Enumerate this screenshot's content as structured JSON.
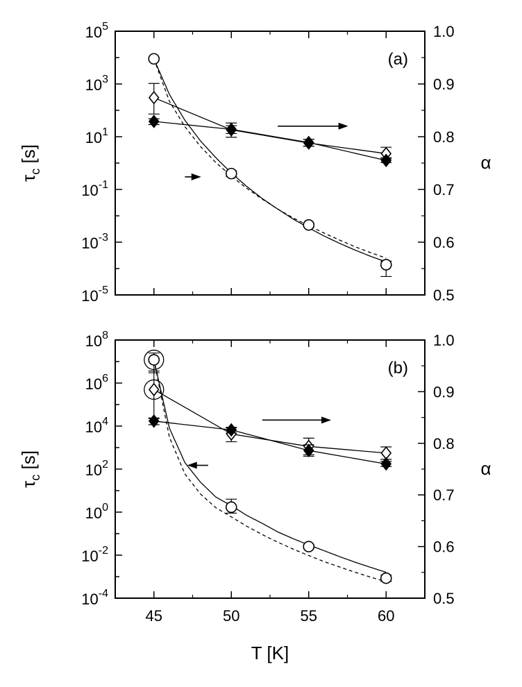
{
  "chart_data": [
    {
      "type": "scatter",
      "panel_label": "(a)",
      "xlabel": "",
      "ylabel": "τc [s]",
      "ylabel_main": "τ",
      "ylabel_sub": "c",
      "ylabel_unit": "[s]",
      "y2label": "α",
      "xlim": [
        42.5,
        62.5
      ],
      "ylim_log10": [
        -5,
        5
      ],
      "y_scale": "log",
      "y_ticks": [
        -5,
        -3,
        -1,
        1,
        3,
        5
      ],
      "y_tick_labels": [
        {
          "base": "10",
          "exp": "-5"
        },
        {
          "base": "10",
          "exp": "-3"
        },
        {
          "base": "10",
          "exp": "-1"
        },
        {
          "base": "10",
          "exp": "1"
        },
        {
          "base": "10",
          "exp": "3"
        },
        {
          "base": "10",
          "exp": "5"
        }
      ],
      "y2lim": [
        0.5,
        1.0
      ],
      "y2_ticks": [
        "0.5",
        "0.6",
        "0.7",
        "0.8",
        "0.9",
        "1.0"
      ],
      "x_ticks": [
        45,
        50,
        55,
        60
      ],
      "x_tick_labels_shown": false,
      "series": [
        {
          "axis": "left",
          "marker": "open-circle",
          "x": [
            45,
            50,
            55,
            60
          ],
          "y": [
            9000,
            0.4,
            0.0045,
            0.00014
          ],
          "err_low": [
            null,
            0.31,
            0.0039,
            5e-05
          ],
          "err_high": [
            null,
            0.51,
            0.0052,
            0.00019
          ]
        },
        {
          "axis": "right",
          "marker": "open-diamond",
          "x": [
            45,
            50,
            55,
            60
          ],
          "y": [
            0.874,
            0.813,
            0.788,
            0.768
          ],
          "err_low": [
            0.843,
            0.799,
            0.782,
            0.758
          ],
          "err_high": [
            0.901,
            0.826,
            0.795,
            0.78
          ]
        },
        {
          "axis": "right",
          "marker": "filled-diamond",
          "x": [
            45,
            50,
            55,
            60
          ],
          "y": [
            0.829,
            0.814,
            0.789,
            0.755
          ],
          "err_low": [
            0.823,
            0.806,
            0.782,
            0.751
          ],
          "err_high": [
            0.834,
            0.821,
            0.795,
            0.76
          ]
        }
      ],
      "fits": [
        {
          "axis": "left",
          "style": "solid",
          "x": [
            45,
            46,
            47,
            48,
            49,
            50,
            51,
            52,
            53,
            54,
            55,
            56,
            57,
            58,
            59,
            60
          ],
          "y": [
            9000,
            400,
            42,
            7,
            1.6,
            0.42,
            0.13,
            0.045,
            0.018,
            0.0075,
            0.0035,
            0.0017,
            0.0009,
            0.0005,
            0.00029,
            0.00018
          ]
        },
        {
          "axis": "left",
          "style": "dashed",
          "x": [
            45,
            46,
            47,
            48,
            49,
            50,
            51,
            52,
            53,
            54,
            55,
            56,
            57,
            58,
            59,
            60
          ],
          "y": [
            9000,
            220,
            24,
            4.3,
            1.05,
            0.32,
            0.11,
            0.043,
            0.018,
            0.0083,
            0.0042,
            0.0022,
            0.0012,
            0.00067,
            0.0004,
            0.00025
          ]
        },
        {
          "axis": "right",
          "style": "solid",
          "x": [
            45,
            50,
            55,
            60
          ],
          "y": [
            0.874,
            0.813,
            0.788,
            0.768
          ]
        },
        {
          "axis": "right",
          "style": "solid",
          "x": [
            45,
            50,
            55,
            60
          ],
          "y": [
            0.829,
            0.814,
            0.789,
            0.755
          ]
        }
      ],
      "arrows": [
        {
          "direction": "left",
          "x_from": 47,
          "x_to": 44.8,
          "axis": "left",
          "y": 0.3
        },
        {
          "direction": "right",
          "x_from": 53,
          "x_to": 57.1,
          "axis": "right",
          "y": 0.82
        }
      ]
    },
    {
      "type": "scatter",
      "panel_label": "(b)",
      "xlabel": "T [K]",
      "ylabel": "τc [s]",
      "ylabel_main": "τ",
      "ylabel_sub": "c",
      "ylabel_unit": "[s]",
      "y2label": "α",
      "xlim": [
        42.5,
        62.5
      ],
      "ylim_log10": [
        -4,
        8
      ],
      "y_scale": "log",
      "y_ticks": [
        -4,
        -2,
        0,
        2,
        4,
        6,
        8
      ],
      "y_tick_labels": [
        {
          "base": "10",
          "exp": "-4"
        },
        {
          "base": "10",
          "exp": "-2"
        },
        {
          "base": "10",
          "exp": "0"
        },
        {
          "base": "10",
          "exp": "2"
        },
        {
          "base": "10",
          "exp": "4"
        },
        {
          "base": "10",
          "exp": "6"
        },
        {
          "base": "10",
          "exp": "8"
        }
      ],
      "y2lim": [
        0.5,
        1.0
      ],
      "y2_ticks": [
        "0.5",
        "0.6",
        "0.7",
        "0.8",
        "0.9",
        "1.0"
      ],
      "x_ticks": [
        45,
        50,
        55,
        60
      ],
      "x_tick_labels": [
        "45",
        "50",
        "55",
        "60"
      ],
      "series": [
        {
          "axis": "left",
          "marker": "open-circle",
          "x": [
            45,
            50,
            55,
            60
          ],
          "y": [
            12000000.0,
            1.7,
            0.025,
            0.00085
          ],
          "err_low": [
            3000000.0,
            0.9,
            0.02,
            0.0006
          ],
          "err_high": [
            25000000.0,
            4.0,
            0.031,
            0.0012
          ],
          "highlight": [
            true,
            false,
            false,
            false
          ]
        },
        {
          "axis": "right",
          "marker": "open-diamond",
          "x": [
            45,
            50,
            55,
            60
          ],
          "y": [
            0.904,
            0.818,
            0.794,
            0.781
          ],
          "err_low": [
            0.848,
            0.803,
            0.778,
            0.769
          ],
          "err_high": [
            0.94,
            0.83,
            0.81,
            0.793
          ],
          "highlight": [
            true,
            false,
            false,
            false
          ]
        },
        {
          "axis": "right",
          "marker": "filled-diamond",
          "x": [
            45,
            50,
            55,
            60
          ],
          "y": [
            0.843,
            0.826,
            0.786,
            0.76
          ],
          "err_low": [
            0.836,
            0.82,
            0.775,
            0.755
          ],
          "err_high": [
            0.849,
            0.831,
            0.797,
            0.765
          ]
        }
      ],
      "fits": [
        {
          "axis": "left",
          "style": "solid",
          "x": [
            45,
            46,
            47,
            48,
            49,
            50,
            51,
            52,
            53,
            54,
            55,
            56,
            57,
            58,
            59,
            60
          ],
          "y": [
            12000000.0,
            8000,
            200,
            25,
            5,
            2,
            0.7,
            0.3,
            0.12,
            0.058,
            0.03,
            0.016,
            0.0085,
            0.0047,
            0.0027,
            0.0016
          ]
        },
        {
          "axis": "left",
          "style": "dashed",
          "x": [
            45,
            46,
            47,
            48,
            49,
            50,
            51,
            52,
            53,
            54,
            55,
            56,
            57,
            58,
            59,
            60
          ],
          "y": [
            12000000.0,
            3000,
            60,
            7,
            1.6,
            0.6,
            0.22,
            0.09,
            0.04,
            0.019,
            0.0096,
            0.005,
            0.0028,
            0.0016,
            0.00095,
            0.00058
          ]
        },
        {
          "axis": "right",
          "style": "solid",
          "x": [
            45,
            50,
            55,
            60
          ],
          "y": [
            0.904,
            0.818,
            0.794,
            0.781
          ]
        },
        {
          "axis": "right",
          "style": "solid",
          "x": [
            45,
            50,
            55,
            60
          ],
          "y": [
            0.843,
            0.826,
            0.786,
            0.76
          ]
        }
      ],
      "arrows": [
        {
          "direction": "left",
          "x_from": 48.5,
          "x_to": 44.8,
          "axis": "left",
          "y": 150
        },
        {
          "direction": "right",
          "x_from": 52,
          "x_to": 56,
          "axis": "right",
          "y": 0.845
        }
      ]
    }
  ]
}
